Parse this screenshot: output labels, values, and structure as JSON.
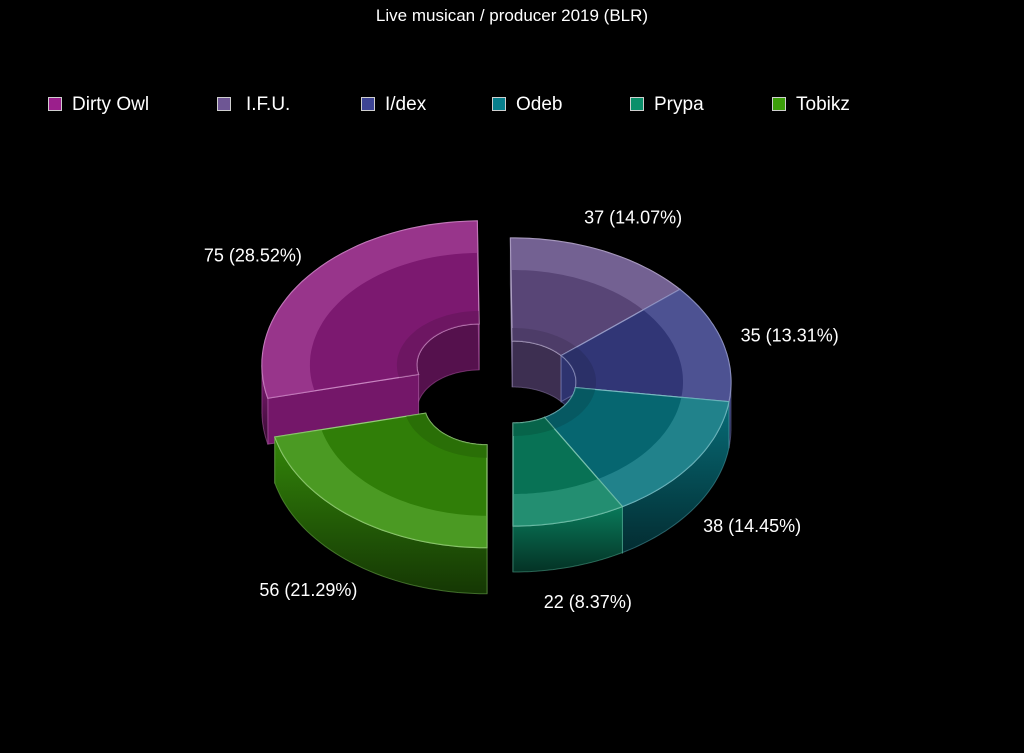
{
  "chart_data": {
    "type": "pie",
    "variant": "3d-donut",
    "title": "Live musican / producer 2019 (BLR)",
    "legend_position": "top",
    "categories": [
      "Dirty Owl",
      "I.F.U.",
      "I/dex",
      "Odeb",
      "Prypa",
      "Tobikz"
    ],
    "values": [
      75,
      37,
      35,
      38,
      22,
      56
    ],
    "data_labels": [
      "75 (28.52%)",
      "37 (14.07%)",
      "35 (13.31%)",
      "38 (14.45%)",
      "22 (8.37%)",
      "56 (21.29%)"
    ],
    "colors": [
      "#9b1f8c",
      "#6e5694",
      "#3d4494",
      "#087f8c",
      "#0a8f6a",
      "#3c9e0a"
    ],
    "exploded": [
      "Dirty Owl",
      "Tobikz"
    ]
  },
  "legend": {
    "items": [
      {
        "label": "Dirty Owl",
        "color": "#9b1f8c"
      },
      {
        "label": "I.F.U.",
        "color": "#6e5694"
      },
      {
        "label": "I/dex",
        "color": "#3d4494"
      },
      {
        "label": "Odeb",
        "color": "#087f8c"
      },
      {
        "label": "Prypa",
        "color": "#0a8f6a"
      },
      {
        "label": "Tobikz",
        "color": "#3c9e0a"
      }
    ]
  }
}
